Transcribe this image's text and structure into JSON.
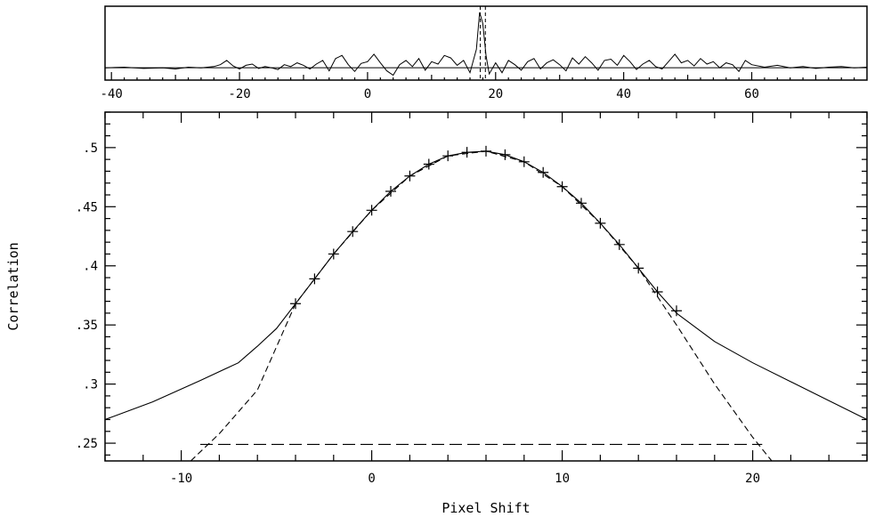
{
  "chart_data": [
    {
      "type": "line",
      "title": "",
      "xlabel": "",
      "ylabel": "",
      "xlim": [
        -41,
        78
      ],
      "ylim": [
        -0.2,
        1.0
      ],
      "x_ticks": [
        -40,
        -20,
        0,
        20,
        40,
        60
      ],
      "x_tick_labels": [
        "-40",
        "-20",
        "0",
        "20",
        "40",
        "60"
      ],
      "baseline": 0.0,
      "peak_markers": [
        17.6,
        18.4
      ],
      "series": [
        {
          "style": "solid",
          "x": [
            -41,
            -38,
            -35,
            -32,
            -30,
            -28,
            -26,
            -24,
            -23,
            -22,
            -21,
            -20,
            -19,
            -18,
            -17,
            -16,
            -15,
            -14,
            -13,
            -12,
            -11,
            -10,
            -9,
            -8,
            -7,
            -6,
            -5,
            -4,
            -3,
            -2,
            -1,
            0,
            1,
            2,
            3,
            4,
            5,
            6,
            7,
            8,
            9,
            10,
            11,
            12,
            13,
            14,
            15,
            16,
            17,
            17.5,
            18,
            18.5,
            19,
            20,
            21,
            22,
            23,
            24,
            25,
            26,
            27,
            28,
            29,
            30,
            31,
            32,
            33,
            34,
            35,
            36,
            37,
            38,
            39,
            40,
            41,
            42,
            43,
            44,
            45,
            46,
            47,
            48,
            49,
            50,
            51,
            52,
            53,
            54,
            55,
            56,
            57,
            58,
            59,
            60,
            62,
            64,
            66,
            68,
            70,
            72,
            74,
            76,
            78
          ],
          "y": [
            0.0,
            0.01,
            -0.01,
            0.0,
            -0.02,
            0.01,
            0.0,
            0.02,
            0.05,
            0.12,
            0.03,
            -0.02,
            0.04,
            0.06,
            -0.01,
            0.02,
            0.0,
            -0.03,
            0.05,
            0.02,
            0.08,
            0.04,
            -0.02,
            0.06,
            0.12,
            -0.05,
            0.15,
            0.2,
            0.05,
            -0.06,
            0.07,
            0.1,
            0.22,
            0.08,
            -0.05,
            -0.12,
            0.05,
            0.12,
            0.02,
            0.15,
            -0.04,
            0.1,
            0.06,
            0.2,
            0.16,
            0.04,
            0.12,
            -0.08,
            0.3,
            0.9,
            0.72,
            0.2,
            -0.1,
            0.08,
            -0.08,
            0.12,
            0.05,
            -0.04,
            0.1,
            0.15,
            -0.02,
            0.08,
            0.13,
            0.05,
            -0.05,
            0.16,
            0.06,
            0.18,
            0.08,
            -0.04,
            0.12,
            0.14,
            0.04,
            0.2,
            0.1,
            -0.03,
            0.06,
            0.12,
            0.02,
            -0.02,
            0.1,
            0.22,
            0.08,
            0.12,
            0.03,
            0.15,
            0.06,
            0.1,
            0.0,
            0.08,
            0.05,
            -0.06,
            0.12,
            0.05,
            0.01,
            0.04,
            0.0,
            0.02,
            -0.01,
            0.01,
            0.02,
            0.0,
            0.01
          ]
        }
      ]
    },
    {
      "type": "line",
      "title": "",
      "xlabel": "Pixel Shift",
      "ylabel": "Correlation",
      "xlim": [
        -14,
        26
      ],
      "ylim": [
        0.235,
        0.53
      ],
      "x_ticks": [
        -10,
        0,
        10,
        20
      ],
      "x_tick_labels": [
        "-10",
        "0",
        "10",
        "20"
      ],
      "y_ticks": [
        0.25,
        0.3,
        0.35,
        0.4,
        0.45,
        0.5
      ],
      "y_tick_labels": [
        ".25",
        ".3",
        ".35",
        ".4",
        ".45",
        ".5"
      ],
      "series": [
        {
          "style": "solid",
          "x": [
            -14,
            -11.5,
            -9,
            -7,
            -6,
            -5,
            -4,
            -3,
            -2,
            -1,
            0,
            1,
            2,
            3,
            4,
            5,
            6,
            7,
            8,
            9,
            10,
            11,
            12,
            13,
            14,
            15,
            16,
            18,
            20,
            22,
            24,
            26
          ],
          "y": [
            0.27,
            0.285,
            0.303,
            0.318,
            0.332,
            0.347,
            0.368,
            0.389,
            0.41,
            0.429,
            0.447,
            0.463,
            0.476,
            0.486,
            0.493,
            0.496,
            0.497,
            0.494,
            0.488,
            0.479,
            0.467,
            0.453,
            0.436,
            0.418,
            0.398,
            0.378,
            0.36,
            0.336,
            0.318,
            0.302,
            0.286,
            0.27
          ]
        },
        {
          "style": "markers",
          "marker": "+",
          "x": [
            -4,
            -3,
            -2,
            -1,
            0,
            1,
            2,
            3,
            4,
            5,
            6,
            7,
            8,
            9,
            10,
            11,
            12,
            13,
            14,
            15,
            16
          ],
          "y": [
            0.368,
            0.389,
            0.41,
            0.429,
            0.447,
            0.463,
            0.476,
            0.486,
            0.493,
            0.496,
            0.497,
            0.494,
            0.488,
            0.479,
            0.467,
            0.453,
            0.436,
            0.418,
            0.398,
            0.378,
            0.362
          ]
        },
        {
          "style": "dashed",
          "x": [
            -9.5,
            -8,
            -6,
            -4,
            -2,
            0,
            2,
            4,
            6,
            8,
            10,
            12,
            14,
            16,
            18,
            20,
            21
          ],
          "y": [
            0.235,
            0.258,
            0.295,
            0.368,
            0.41,
            0.447,
            0.476,
            0.493,
            0.497,
            0.488,
            0.467,
            0.436,
            0.398,
            0.35,
            0.3,
            0.255,
            0.235
          ]
        },
        {
          "style": "long-dashed",
          "x": [
            -9,
            20.5
          ],
          "y": [
            0.249,
            0.249
          ]
        }
      ]
    }
  ]
}
